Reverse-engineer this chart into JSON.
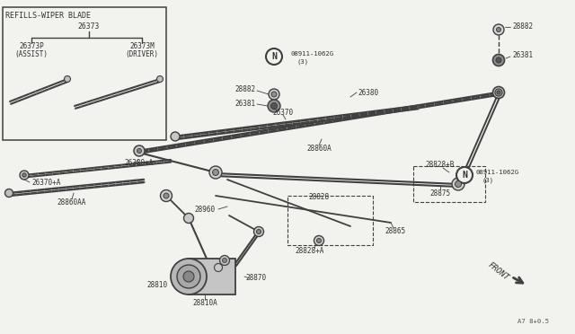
{
  "bg_color": "#f2f2ee",
  "line_color": "#404040",
  "text_color": "#303030",
  "figsize": [
    6.4,
    3.72
  ],
  "dpi": 100,
  "labels": {
    "title_inset": "REFILLS-WIPER BLADE",
    "26373": "26373",
    "26373P": "26373P",
    "assist": "(ASSIST)",
    "26373M": "26373M",
    "driver": "(DRIVER)",
    "26370A": "26370+A",
    "28860AA": "28860AA",
    "26380": "26380",
    "26381a": "26381",
    "28882a": "28882",
    "26380B": "26380+A",
    "26370": "26370",
    "28860A": "28860A",
    "08911a_label": "08911-1062G",
    "08911a_3": "(3)",
    "08911b_label": "08911-1062G",
    "08911b_3": "(3)",
    "28882b": "28882",
    "26381b": "26381",
    "28828B": "28828+B",
    "28875": "28875",
    "28960": "28960",
    "28828": "28828",
    "28865": "28865",
    "28828A": "28828+A",
    "28810": "28810",
    "28810A": "28810A",
    "28870": "28870",
    "FRONT": "FRONT",
    "ref": "A7 8+0.5"
  }
}
